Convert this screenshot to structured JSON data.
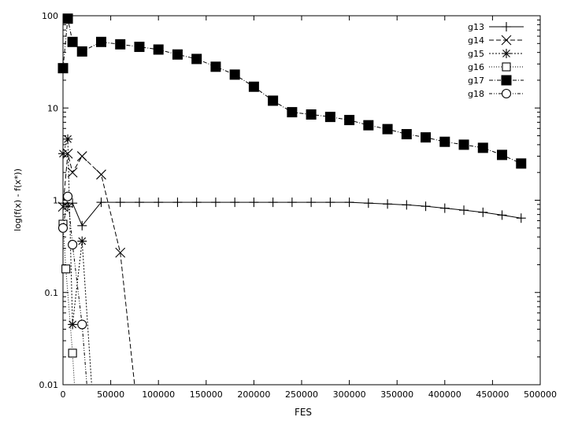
{
  "chart_data": {
    "type": "line",
    "title": "",
    "xlabel": "FES",
    "ylabel": "log(f(x) - f(x*))",
    "xlim": [
      0,
      500000
    ],
    "ylim": [
      0.01,
      100
    ],
    "y_scale": "log",
    "grid": false,
    "legend_position": "top-right",
    "x_ticks": [
      0,
      50000,
      100000,
      150000,
      200000,
      250000,
      300000,
      350000,
      400000,
      450000,
      500000
    ],
    "x_tick_labels": [
      "0",
      "50000",
      "100000",
      "150000",
      "200000",
      "250000",
      "300000",
      "350000",
      "400000",
      "450000",
      "500000"
    ],
    "y_ticks": [
      0.01,
      0.1,
      1,
      10,
      100
    ],
    "y_tick_labels": [
      "0.01",
      "0.1",
      "1",
      "10",
      "100"
    ],
    "series": [
      {
        "name": "g13",
        "marker": "plus",
        "dash": "solid",
        "points": [
          [
            0,
            0.93
          ],
          [
            5000,
            0.85
          ],
          [
            10000,
            0.93
          ],
          [
            20000,
            0.53
          ],
          [
            40000,
            0.95
          ],
          [
            60000,
            0.95
          ],
          [
            80000,
            0.95
          ],
          [
            100000,
            0.95
          ],
          [
            120000,
            0.95
          ],
          [
            140000,
            0.95
          ],
          [
            160000,
            0.95
          ],
          [
            180000,
            0.95
          ],
          [
            200000,
            0.95
          ],
          [
            220000,
            0.95
          ],
          [
            240000,
            0.95
          ],
          [
            260000,
            0.95
          ],
          [
            280000,
            0.95
          ],
          [
            300000,
            0.95
          ],
          [
            320000,
            0.93
          ],
          [
            340000,
            0.91
          ],
          [
            360000,
            0.89
          ],
          [
            380000,
            0.86
          ],
          [
            400000,
            0.82
          ],
          [
            420000,
            0.78
          ],
          [
            440000,
            0.74
          ],
          [
            460000,
            0.69
          ],
          [
            480000,
            0.64
          ]
        ]
      },
      {
        "name": "g14",
        "marker": "x",
        "dash": "6,3",
        "points": [
          [
            0,
            0.85
          ],
          [
            5000,
            3.2
          ],
          [
            10000,
            2.0
          ],
          [
            20000,
            3.0
          ],
          [
            40000,
            1.9
          ],
          [
            60000,
            0.27
          ],
          [
            75000,
            0.01
          ]
        ]
      },
      {
        "name": "g15",
        "marker": "star",
        "dash": "2,2",
        "points": [
          [
            0,
            3.2
          ],
          [
            5000,
            4.6
          ],
          [
            10000,
            0.045
          ],
          [
            20000,
            0.36
          ],
          [
            30000,
            0.01
          ]
        ]
      },
      {
        "name": "g16",
        "marker": "square-open",
        "dash": "1,2",
        "points": [
          [
            0,
            0.55
          ],
          [
            3000,
            0.18
          ],
          [
            10000,
            0.022
          ],
          [
            12000,
            0.01
          ]
        ]
      },
      {
        "name": "g17",
        "marker": "square-filled",
        "dash": "5,2,1,2",
        "points": [
          [
            0,
            27
          ],
          [
            5000,
            93
          ],
          [
            10000,
            52
          ],
          [
            20000,
            41
          ],
          [
            40000,
            52
          ],
          [
            60000,
            49
          ],
          [
            80000,
            46
          ],
          [
            100000,
            43
          ],
          [
            120000,
            38
          ],
          [
            140000,
            34
          ],
          [
            160000,
            28
          ],
          [
            180000,
            23
          ],
          [
            200000,
            17
          ],
          [
            220000,
            12
          ],
          [
            240000,
            9.0
          ],
          [
            260000,
            8.5
          ],
          [
            280000,
            8.0
          ],
          [
            300000,
            7.4
          ],
          [
            320000,
            6.5
          ],
          [
            340000,
            5.9
          ],
          [
            360000,
            5.2
          ],
          [
            380000,
            4.8
          ],
          [
            400000,
            4.3
          ],
          [
            420000,
            4.0
          ],
          [
            440000,
            3.7
          ],
          [
            460000,
            3.1
          ],
          [
            480000,
            2.5
          ]
        ]
      },
      {
        "name": "g18",
        "marker": "circle-open",
        "dash": "4,2,1,2,1,2",
        "points": [
          [
            0,
            0.5
          ],
          [
            5000,
            1.1
          ],
          [
            10000,
            0.33
          ],
          [
            20000,
            0.045
          ],
          [
            25000,
            0.01
          ]
        ]
      }
    ]
  }
}
